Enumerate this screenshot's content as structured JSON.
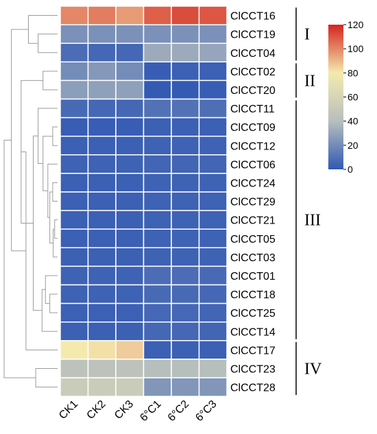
{
  "chart_data": {
    "type": "heatmap",
    "columns": [
      "CK1",
      "CK2",
      "CK3",
      "6°C1",
      "6°C2",
      "6°C3"
    ],
    "rows": [
      "ClCCT16",
      "ClCCT19",
      "ClCCT04",
      "ClCCT02",
      "ClCCT20",
      "ClCCT11",
      "ClCCT09",
      "ClCCT12",
      "ClCCT06",
      "ClCCT24",
      "ClCCT29",
      "ClCCT21",
      "ClCCT05",
      "ClCCT03",
      "ClCCT01",
      "ClCCT18",
      "ClCCT25",
      "ClCCT14",
      "ClCCT17",
      "ClCCT23",
      "ClCCT28"
    ],
    "values": [
      [
        100,
        102,
        96,
        108,
        112,
        110
      ],
      [
        22,
        22,
        22,
        22,
        22,
        22
      ],
      [
        8,
        6,
        6,
        32,
        32,
        30
      ],
      [
        20,
        25,
        20,
        2,
        3,
        3
      ],
      [
        27,
        28,
        28,
        1,
        1,
        2
      ],
      [
        7,
        6,
        6,
        10,
        10,
        9
      ],
      [
        2,
        2,
        2,
        3,
        3,
        3
      ],
      [
        3,
        3,
        3,
        4,
        4,
        4
      ],
      [
        4,
        4,
        4,
        5,
        5,
        5
      ],
      [
        3,
        3,
        3,
        4,
        4,
        4
      ],
      [
        3,
        3,
        3,
        4,
        4,
        4
      ],
      [
        3,
        3,
        3,
        4,
        4,
        4
      ],
      [
        3,
        3,
        3,
        4,
        4,
        4
      ],
      [
        3,
        3,
        3,
        4,
        4,
        4
      ],
      [
        4,
        4,
        4,
        8,
        8,
        7
      ],
      [
        4,
        4,
        4,
        7,
        7,
        6
      ],
      [
        3,
        3,
        3,
        6,
        6,
        5
      ],
      [
        3,
        3,
        3,
        6,
        6,
        5
      ],
      [
        80,
        82,
        86,
        3,
        3,
        3
      ],
      [
        44,
        44,
        44,
        40,
        40,
        40
      ],
      [
        52,
        52,
        52,
        24,
        24,
        24
      ]
    ],
    "colorbar": {
      "min": 0,
      "max": 120,
      "ticks": [
        "120",
        "100",
        "80",
        "60",
        "40",
        "20",
        "0"
      ]
    },
    "colormap": [
      "#3158b3",
      "#b7bfbd",
      "#f4eaae",
      "#d4241f"
    ],
    "groups": [
      {
        "label": "I",
        "first_row": 0,
        "last_row": 2
      },
      {
        "label": "II",
        "first_row": 3,
        "last_row": 4
      },
      {
        "label": "III",
        "first_row": 5,
        "last_row": 17
      },
      {
        "label": "IV",
        "first_row": 18,
        "last_row": 20
      }
    ],
    "dendrogram": [
      [
        "ClCCT19",
        "ClCCT04",
        4
      ],
      [
        "ClCCT16",
        "n1",
        6
      ],
      [
        "ClCCT02",
        "ClCCT20",
        3
      ],
      [
        "ClCCT09",
        "ClCCT12",
        1
      ],
      [
        "ClCCT24",
        "ClCCT29",
        1
      ],
      [
        "ClCCT21",
        "ClCCT05",
        0.6
      ],
      [
        "n5",
        "ClCCT03",
        0.9
      ],
      [
        "n4",
        "n6",
        1.6
      ],
      [
        "ClCCT06",
        "n7",
        2
      ],
      [
        "n3",
        "n8",
        3
      ],
      [
        "ClCCT11",
        "n9",
        4
      ],
      [
        "ClCCT18",
        "ClCCT25",
        1.6
      ],
      [
        "ClCCT01",
        "n10",
        2.5
      ],
      [
        "n11",
        "ClCCT14",
        3.2
      ],
      [
        "n9b",
        "n12",
        5
      ],
      [
        "n2",
        "n13",
        7.5
      ],
      [
        "ClCCT23",
        "ClCCT28",
        4.5
      ],
      [
        "ClCCT17",
        "n15",
        6.5
      ],
      [
        "n0",
        "n14",
        9.5
      ],
      [
        "n16",
        "n17",
        11
      ]
    ]
  }
}
